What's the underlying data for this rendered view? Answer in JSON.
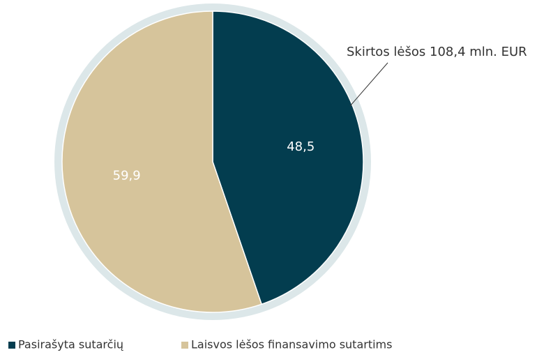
{
  "chart_data": {
    "type": "pie",
    "categories": [
      "Pasirašyta sutarčių",
      "Laisvos lėšos finansavimo sutartims"
    ],
    "values": [
      48.5,
      59.9
    ],
    "value_labels": [
      "48,5",
      "59,9"
    ],
    "colors": [
      "#033d4f",
      "#d6c49b"
    ],
    "ring_color": "#dce7e9",
    "annotation": "Skirtos lėšos 108,4 mln. EUR"
  }
}
